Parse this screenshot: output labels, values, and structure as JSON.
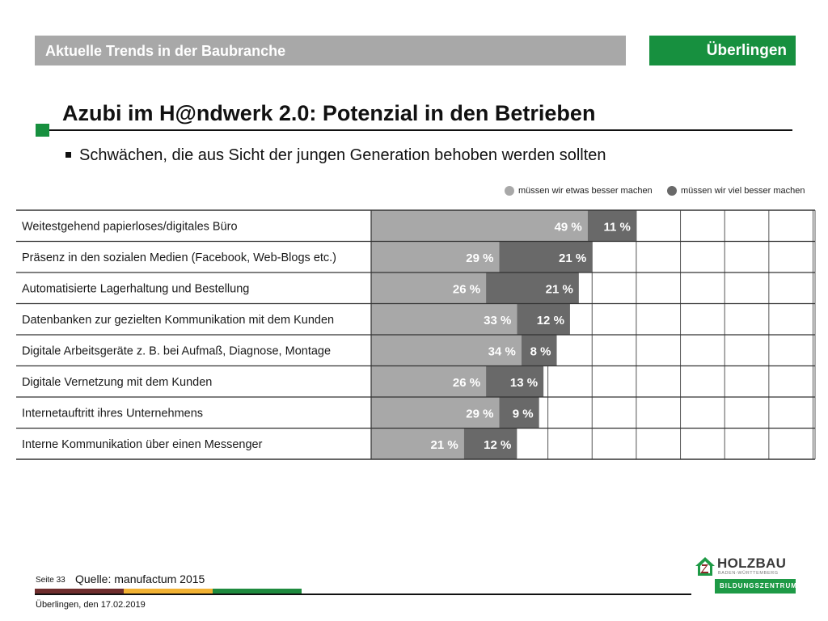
{
  "header": {
    "section_title": "Aktuelle Trends in der Baubranche",
    "location": "Überlingen"
  },
  "page_title": "Azubi im H@ndwerk 2.0: Potenzial in den Betrieben",
  "subtitle": "Schwächen, die aus Sicht der jungen Generation behoben werden sollten",
  "colors": {
    "green": "#17903f",
    "light_gray": "#a8a8a8",
    "dark_gray": "#696969",
    "stripe_brown": "#6e2d2d",
    "stripe_yellow": "#f2b233",
    "stripe_green": "#1e8a3e"
  },
  "chart_data": {
    "type": "bar",
    "orientation": "horizontal",
    "stacked": true,
    "categories": [
      "Weitestgehend papierloses/digitales Büro",
      "Präsenz in den sozialen Medien (Facebook, Web-Blogs etc.)",
      "Automatisierte Lagerhaltung und Bestellung",
      "Datenbanken zur gezielten Kommunikation mit dem Kunden",
      "Digitale Arbeitsgeräte z. B. bei Aufmaß, Diagnose, Montage",
      "Digitale Vernetzung mit dem Kunden",
      "Internetauftritt ihres Unternehmens",
      "Interne Kommunikation über einen Messenger"
    ],
    "series": [
      {
        "name": "müssen wir etwas besser machen",
        "color": "#a8a8a8",
        "values": [
          49,
          29,
          26,
          33,
          34,
          26,
          29,
          21
        ]
      },
      {
        "name": "müssen wir viel besser machen",
        "color": "#696969",
        "values": [
          11,
          21,
          21,
          12,
          8,
          13,
          9,
          12
        ]
      }
    ],
    "unit": " %",
    "xlim": [
      0,
      100
    ],
    "grid": true,
    "legend_position": "top-right"
  },
  "footer": {
    "page_label": "Seite 33",
    "source": "Quelle: manufactum 2015",
    "date": "Überlingen, den 17.02.2019"
  },
  "logo": {
    "name": "HOLZBAU",
    "sub": "BADEN-WÜRTTEMBERG",
    "bar": "BILDUNGSZENTRUM"
  }
}
